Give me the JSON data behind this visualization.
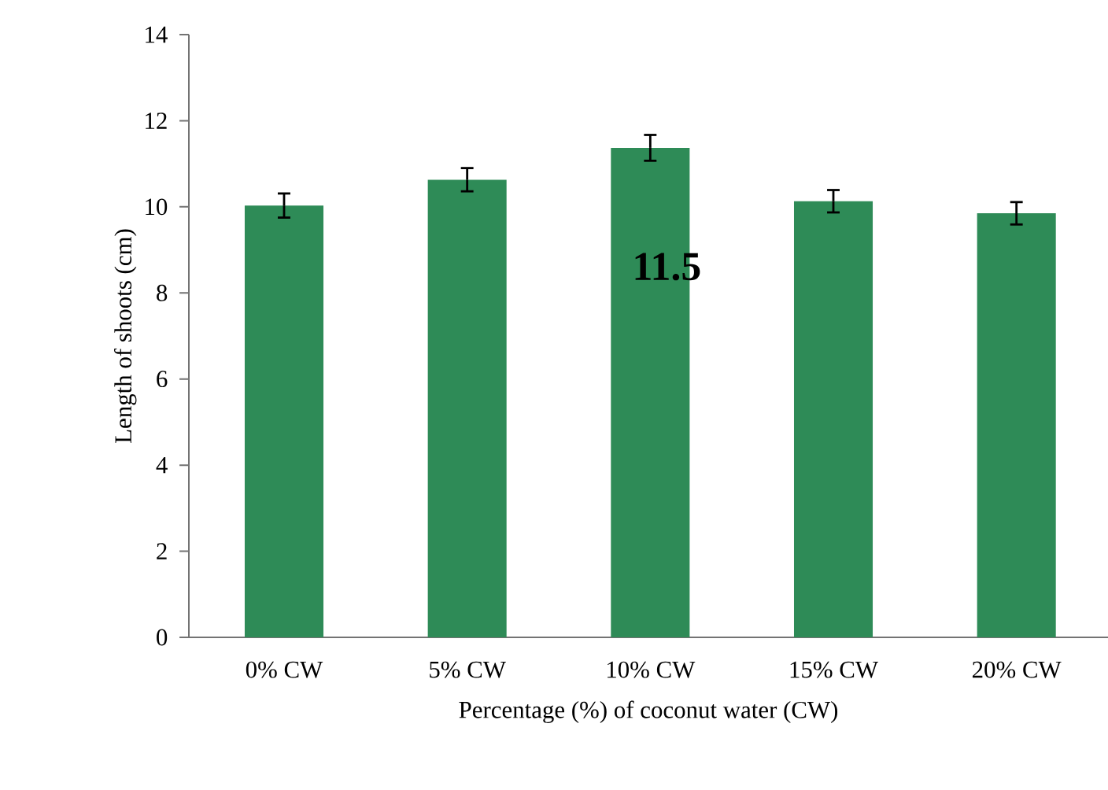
{
  "chart_data": {
    "type": "bar",
    "xlabel": "Percentage (%) of coconut water (CW)",
    "ylabel": "Length of shoots (cm)",
    "categories": [
      "0% CW",
      "5% CW",
      "10% CW",
      "15% CW",
      "20% CW"
    ],
    "values": [
      10.03,
      10.63,
      11.37,
      10.13,
      9.85
    ],
    "errors": [
      0.28,
      0.27,
      0.3,
      0.26,
      0.26
    ],
    "color": "#2e8b57",
    "ylim": [
      0,
      14
    ],
    "yticks": [
      0,
      2,
      4,
      6,
      8,
      10,
      12,
      14
    ],
    "grid": false,
    "annotations": [
      "11.5"
    ]
  }
}
